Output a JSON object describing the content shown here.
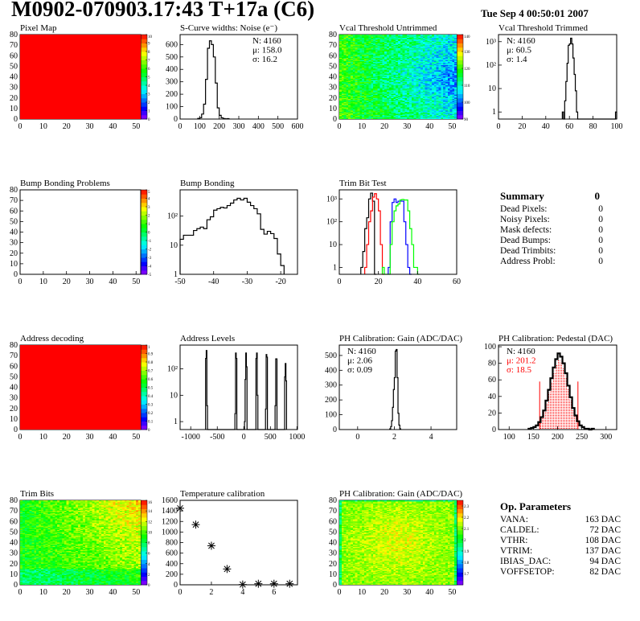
{
  "header": {
    "title": "M0902-070903.17:43 T+17a (C6)",
    "date": "Tue Sep  4 00:50:01 2007"
  },
  "summary": {
    "title": "Summary",
    "total": "0",
    "rows": [
      {
        "label": "Dead Pixels:",
        "value": "0"
      },
      {
        "label": "Noisy Pixels:",
        "value": "0"
      },
      {
        "label": "Mask defects:",
        "value": "0"
      },
      {
        "label": "Dead Bumps:",
        "value": "0"
      },
      {
        "label": "Dead Trimbits:",
        "value": "0"
      },
      {
        "label": "Address Probl:",
        "value": "0"
      }
    ]
  },
  "op_params": {
    "title": "Op. Parameters",
    "rows": [
      {
        "label": "VANA:",
        "value": "163 DAC"
      },
      {
        "label": "CALDEL:",
        "value": "72 DAC"
      },
      {
        "label": "VTHR:",
        "value": "108 DAC"
      },
      {
        "label": "VTRIM:",
        "value": "137 DAC"
      },
      {
        "label": "IBIAS_DAC:",
        "value": "94 DAC"
      },
      {
        "label": "VOFFSETOP:",
        "value": "82 DAC"
      }
    ]
  },
  "colors": {
    "palette": "rainbow",
    "fit": "#ff0000",
    "trim_series": [
      "#000000",
      "#ff0000",
      "#0000ff",
      "#00ff00"
    ]
  },
  "chart_data": [
    {
      "type": "heatmap",
      "title": "Pixel Map",
      "xlim": [
        0,
        52
      ],
      "ylim": [
        0,
        80
      ],
      "zlim": [
        0,
        10
      ],
      "xticks": [
        "0",
        "10",
        "20",
        "30",
        "40",
        "50"
      ],
      "yticks": [
        "0",
        "10",
        "20",
        "30",
        "40",
        "50",
        "60",
        "70",
        "80"
      ],
      "zticks": [
        "0",
        "1",
        "2",
        "3",
        "4",
        "5",
        "6",
        "7",
        "8",
        "9",
        "10"
      ],
      "uniform_value": 10
    },
    {
      "type": "histogram",
      "title": "S-Curve widths: Noise (e⁻)",
      "xlim": [
        0,
        600
      ],
      "ylim": [
        0,
        680
      ],
      "ylog": false,
      "xticks": [
        "0",
        "100",
        "200",
        "300",
        "400",
        "500",
        "600"
      ],
      "yticks": [
        "0",
        "100",
        "200",
        "300",
        "400",
        "500",
        "600"
      ],
      "bin_width": 10,
      "bins": [
        [
          90,
          5
        ],
        [
          100,
          10
        ],
        [
          110,
          40
        ],
        [
          120,
          120
        ],
        [
          130,
          320
        ],
        [
          140,
          570
        ],
        [
          150,
          630
        ],
        [
          160,
          600
        ],
        [
          170,
          500
        ],
        [
          180,
          290
        ],
        [
          190,
          90
        ],
        [
          200,
          30
        ],
        [
          210,
          10
        ],
        [
          220,
          4
        ],
        [
          230,
          2
        ],
        [
          240,
          3
        ]
      ],
      "stats_position": "top-right",
      "stats": [
        "N: 4160",
        "μ: 158.0",
        "σ: 16.2"
      ]
    },
    {
      "type": "heatmap",
      "title": "Vcal Threshold Untrimmed",
      "xlim": [
        0,
        52
      ],
      "ylim": [
        0,
        80
      ],
      "zlim": [
        90,
        140
      ],
      "xticks": [
        "0",
        "10",
        "20",
        "30",
        "40",
        "50"
      ],
      "yticks": [
        "0",
        "10",
        "20",
        "30",
        "40",
        "50",
        "60",
        "70",
        "80"
      ],
      "zticks": [
        "90",
        "100",
        "110",
        "120",
        "130",
        "140"
      ]
    },
    {
      "type": "histogram",
      "title": "Vcal Threshold Trimmed",
      "xlim": [
        0,
        100
      ],
      "ylim": [
        0.5,
        2000
      ],
      "ylog": true,
      "xticks": [
        "0",
        "20",
        "40",
        "60",
        "80",
        "100"
      ],
      "yticks": [
        "1",
        "10",
        "100",
        "1000"
      ],
      "ytick_labels": [
        "1",
        "10",
        "10²",
        "10³"
      ],
      "bin_width": 1,
      "bins": [
        [
          54,
          1
        ],
        [
          56,
          3
        ],
        [
          57,
          20
        ],
        [
          58,
          120
        ],
        [
          59,
          700
        ],
        [
          60,
          800
        ],
        [
          61,
          1400
        ],
        [
          62,
          800
        ],
        [
          63,
          200
        ],
        [
          64,
          40
        ],
        [
          65,
          8
        ],
        [
          66,
          1
        ],
        [
          99,
          1
        ]
      ],
      "stats_position": "top-left",
      "stats": [
        "N: 4160",
        "μ: 60.5",
        "σ:  1.4"
      ]
    },
    {
      "type": "heatmap",
      "title": "Bump Bonding Problems",
      "xlim": [
        0,
        52
      ],
      "ylim": [
        0,
        80
      ],
      "zlim": [
        -5,
        5
      ],
      "xticks": [
        "0",
        "10",
        "20",
        "30",
        "40",
        "50"
      ],
      "yticks": [
        "0",
        "10",
        "20",
        "30",
        "40",
        "50",
        "60",
        "70",
        "80"
      ],
      "zticks": [
        "-5",
        "-4",
        "-3",
        "-2",
        "-1",
        "0",
        "1",
        "2",
        "3",
        "4",
        "5"
      ],
      "empty": true
    },
    {
      "type": "histogram",
      "title": "Bump Bonding",
      "xlim": [
        -50,
        -15
      ],
      "ylim": [
        1,
        800
      ],
      "ylog": true,
      "xticks": [
        "-50",
        "-40",
        "-30",
        "-20"
      ],
      "yticks": [
        "1",
        "10",
        "100"
      ],
      "ytick_labels": [
        "1",
        "10",
        "10²"
      ],
      "bin_width": 1,
      "bins": [
        [
          -50,
          16
        ],
        [
          -49,
          22
        ],
        [
          -48,
          22
        ],
        [
          -47,
          22
        ],
        [
          -46,
          32
        ],
        [
          -45,
          37
        ],
        [
          -44,
          42
        ],
        [
          -43,
          37
        ],
        [
          -42,
          75
        ],
        [
          -41,
          95
        ],
        [
          -40,
          160
        ],
        [
          -39,
          180
        ],
        [
          -38,
          200
        ],
        [
          -37,
          190
        ],
        [
          -36,
          230
        ],
        [
          -35,
          280
        ],
        [
          -34,
          360
        ],
        [
          -33,
          410
        ],
        [
          -32,
          360
        ],
        [
          -31,
          410
        ],
        [
          -30,
          300
        ],
        [
          -29,
          230
        ],
        [
          -28,
          180
        ],
        [
          -27,
          120
        ],
        [
          -26,
          35
        ],
        [
          -25,
          24
        ],
        [
          -24,
          30
        ],
        [
          -23,
          25
        ],
        [
          -22,
          17
        ],
        [
          -21,
          5
        ],
        [
          -20,
          2
        ]
      ]
    },
    {
      "type": "histogram",
      "title": "Trim Bit Test",
      "xlim": [
        0,
        60
      ],
      "ylim": [
        0.5,
        2500
      ],
      "ylog": true,
      "xticks": [
        "0",
        "20",
        "40",
        "60"
      ],
      "yticks": [
        "1",
        "10",
        "100",
        "1000"
      ],
      "ytick_labels": [
        "1",
        "10",
        "10²",
        "10³"
      ],
      "bin_width": 1,
      "series": [
        {
          "color": "#000000",
          "bins": [
            [
              11,
              1
            ],
            [
              12,
              5
            ],
            [
              13,
              50
            ],
            [
              14,
              150
            ],
            [
              15,
              1000
            ],
            [
              16,
              1800
            ],
            [
              17,
              800
            ],
            [
              18,
              0.5
            ]
          ]
        },
        {
          "color": "#ff0000",
          "bins": [
            [
              13,
              1
            ],
            [
              14,
              10
            ],
            [
              15,
              100
            ],
            [
              16,
              300
            ],
            [
              17,
              1200
            ],
            [
              18,
              1700
            ],
            [
              19,
              1000
            ],
            [
              20,
              300
            ],
            [
              21,
              10
            ],
            [
              22,
              0.5
            ]
          ]
        },
        {
          "color": "#0000ff",
          "bins": [
            [
              25,
              1
            ],
            [
              26,
              100
            ],
            [
              27,
              700
            ],
            [
              28,
              1000
            ],
            [
              29,
              700
            ],
            [
              30,
              800
            ],
            [
              31,
              800
            ],
            [
              32,
              800
            ],
            [
              33,
              100
            ],
            [
              34,
              10
            ],
            [
              35,
              1
            ],
            [
              36,
              0.5
            ]
          ]
        },
        {
          "color": "#00ff00",
          "bins": [
            [
              22,
              1
            ],
            [
              23,
              0.5
            ],
            [
              26,
              10
            ],
            [
              27,
              100
            ],
            [
              28,
              300
            ],
            [
              29,
              500
            ],
            [
              30,
              600
            ],
            [
              31,
              900
            ],
            [
              32,
              950
            ],
            [
              33,
              900
            ],
            [
              34,
              900
            ],
            [
              35,
              300
            ],
            [
              36,
              50
            ],
            [
              37,
              10
            ],
            [
              38,
              1
            ],
            [
              39,
              1
            ],
            [
              40,
              0.5
            ]
          ]
        }
      ]
    },
    {
      "type": "heatmap",
      "title": "Address decoding",
      "xlim": [
        0,
        52
      ],
      "ylim": [
        0,
        80
      ],
      "zlim": [
        0,
        1
      ],
      "xticks": [
        "0",
        "10",
        "20",
        "30",
        "40",
        "50"
      ],
      "yticks": [
        "0",
        "10",
        "20",
        "30",
        "40",
        "50",
        "60",
        "70",
        "80"
      ],
      "zticks": [
        "0",
        "0.1",
        "0.2",
        "0.3",
        "0.4",
        "0.5",
        "0.6",
        "0.7",
        "0.8",
        "0.9",
        "1"
      ],
      "uniform_value": 1
    },
    {
      "type": "histogram",
      "title": "Address Levels",
      "xlim": [
        -1200,
        1010
      ],
      "ylim": [
        0.5,
        800
      ],
      "ylog": true,
      "xticks": [
        "-1000",
        "-500",
        "0",
        "500",
        "1000"
      ],
      "yticks": [
        "1",
        "10",
        "100"
      ],
      "ytick_labels": [
        "1",
        "10",
        "10²"
      ],
      "bin_width": 12,
      "bins": [
        [
          -720,
          250
        ],
        [
          -708,
          500
        ],
        [
          -696,
          4
        ],
        [
          -168,
          2
        ],
        [
          -156,
          400
        ],
        [
          -144,
          250
        ],
        [
          12,
          1
        ],
        [
          24,
          40
        ],
        [
          36,
          400
        ],
        [
          48,
          120
        ],
        [
          228,
          250
        ],
        [
          240,
          400
        ],
        [
          252,
          10
        ],
        [
          408,
          3
        ],
        [
          420,
          350
        ],
        [
          432,
          280
        ],
        [
          588,
          4
        ],
        [
          600,
          240
        ],
        [
          612,
          240
        ],
        [
          768,
          50
        ],
        [
          780,
          160
        ],
        [
          792,
          35
        ]
      ]
    },
    {
      "type": "histogram",
      "title": "PH Calibration: Gain (ADC/DAC)",
      "xlim": [
        -1,
        5.4
      ],
      "ylim": [
        0,
        570
      ],
      "ylog": false,
      "xticks": [
        "0",
        "2",
        "4"
      ],
      "yticks": [
        "0",
        "100",
        "200",
        "300",
        "400",
        "500"
      ],
      "bin_width": 0.05,
      "bins": [
        [
          1.75,
          5
        ],
        [
          1.8,
          20
        ],
        [
          1.85,
          60
        ],
        [
          1.9,
          150
        ],
        [
          1.95,
          270
        ],
        [
          2.0,
          350
        ],
        [
          2.05,
          530
        ],
        [
          2.1,
          540
        ],
        [
          2.15,
          350
        ],
        [
          2.2,
          110
        ],
        [
          2.25,
          30
        ],
        [
          2.3,
          5
        ]
      ],
      "stats_position": "top-left",
      "stats": [
        "N: 4160",
        "μ: 2.06",
        "σ: 0.09"
      ]
    },
    {
      "type": "histogram",
      "title": "PH Calibration: Pedestal (DAC)",
      "xlim": [
        78,
        322
      ],
      "ylim": [
        0,
        102
      ],
      "ylog": false,
      "xticks": [
        "100",
        "150",
        "200",
        "250",
        "300"
      ],
      "yticks": [
        "0",
        "20",
        "40",
        "60",
        "80",
        "100"
      ],
      "bin_width": 5,
      "bins": [
        [
          140,
          1
        ],
        [
          145,
          2
        ],
        [
          150,
          3
        ],
        [
          155,
          5
        ],
        [
          160,
          9
        ],
        [
          165,
          15
        ],
        [
          170,
          23
        ],
        [
          175,
          35
        ],
        [
          180,
          48
        ],
        [
          185,
          62
        ],
        [
          190,
          75
        ],
        [
          195,
          85
        ],
        [
          200,
          92
        ],
        [
          205,
          88
        ],
        [
          210,
          80
        ],
        [
          215,
          68
        ],
        [
          220,
          53
        ],
        [
          225,
          39
        ],
        [
          230,
          26
        ],
        [
          235,
          17
        ],
        [
          240,
          10
        ],
        [
          245,
          5
        ],
        [
          250,
          3
        ],
        [
          255,
          1
        ],
        [
          260,
          1
        ],
        [
          270,
          1
        ]
      ],
      "fit_range": [
        163,
        242
      ],
      "fit_line_height": 58,
      "stats_position": "top-left",
      "stats": [
        "N: 4160",
        "μ: 201.2",
        "σ: 18.5"
      ],
      "stats_colors": [
        "#000000",
        "#ff0000",
        "#ff0000"
      ]
    },
    {
      "type": "heatmap",
      "title": "Trim Bits",
      "xlim": [
        0,
        52
      ],
      "ylim": [
        0,
        80
      ],
      "zlim": [
        0,
        16
      ],
      "xticks": [
        "0",
        "10",
        "20",
        "30",
        "40",
        "50"
      ],
      "yticks": [
        "0",
        "10",
        "20",
        "30",
        "40",
        "50",
        "60",
        "70",
        "80"
      ],
      "zticks": [
        "0",
        "2",
        "4",
        "6",
        "8",
        "10",
        "12",
        "14",
        "16"
      ]
    },
    {
      "type": "scatter",
      "title": "Temperature calibration",
      "xlim": [
        0,
        7.5
      ],
      "ylim": [
        0,
        1600
      ],
      "marker": "star",
      "xticks": [
        "0",
        "2",
        "4",
        "6"
      ],
      "yticks": [
        "0",
        "200",
        "400",
        "600",
        "800",
        "1000",
        "1200",
        "1400",
        "1600"
      ],
      "x": [
        0,
        1,
        2,
        3,
        4,
        5,
        6,
        7
      ],
      "y": [
        1450,
        1140,
        740,
        300,
        5,
        20,
        20,
        20
      ]
    },
    {
      "type": "heatmap",
      "title": "PH Calibration: Gain (ADC/DAC)",
      "xlim": [
        0,
        52
      ],
      "ylim": [
        0,
        80
      ],
      "zlim": [
        1.6,
        2.35
      ],
      "xticks": [
        "0",
        "10",
        "20",
        "30",
        "40",
        "50"
      ],
      "yticks": [
        "0",
        "10",
        "20",
        "30",
        "40",
        "50",
        "60",
        "70",
        "80"
      ],
      "zticks": [
        "1.7",
        "1.8",
        "1.9",
        "2",
        "2.1",
        "2.2",
        "2.3"
      ]
    }
  ]
}
